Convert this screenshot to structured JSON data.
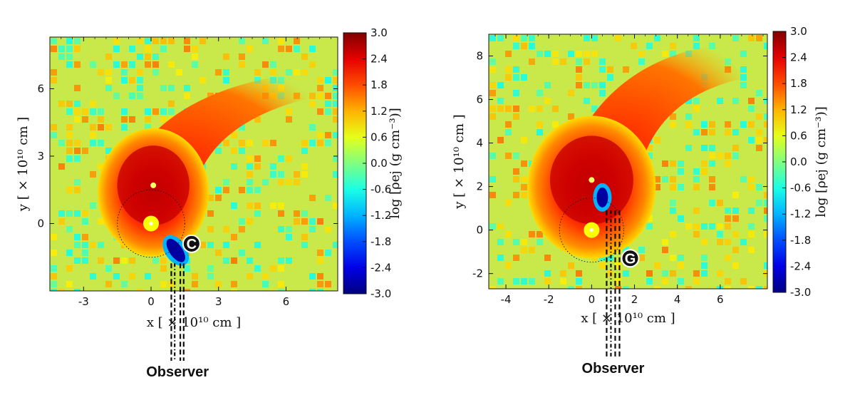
{
  "chart_data": [
    {
      "type": "heatmap",
      "title": "",
      "xlabel": "x [ × 10¹⁰ cm ]",
      "ylabel": "y [ × 10¹⁰ cm ]",
      "xlim": [
        -4.5,
        8.3
      ],
      "ylim": [
        -3.0,
        8.3
      ],
      "xticks": [
        "-3",
        "0",
        "3",
        "6"
      ],
      "xtick_values": [
        -3,
        0,
        3,
        6
      ],
      "yticks": [
        "0",
        "3",
        "6"
      ],
      "ytick_values": [
        0,
        3,
        6
      ],
      "colorbar": {
        "label": "log [ρej (g cm⁻³)]",
        "range": [
          -3.0,
          3.0
        ],
        "ticks": [
          "3.0",
          "2.4",
          "1.8",
          "1.2",
          "0.6",
          "0.0",
          "-0.6",
          "-1.2",
          "-1.8",
          "-2.4",
          "-3.0"
        ]
      },
      "companion_star": {
        "x": 0.0,
        "y": 0.0
      },
      "ejecta_center": {
        "x": 0.1,
        "y": 1.7
      },
      "circle": {
        "x": 0.0,
        "y": 0.0,
        "r": 1.5
      },
      "low_density_blob": {
        "x": 1.1,
        "y": -1.2,
        "value": -2.8
      },
      "marker": {
        "label": "C",
        "x": 1.8,
        "y": -0.9
      },
      "observer_lines_x": [
        0.9,
        1.05,
        1.3,
        1.45
      ],
      "observer_label": "Observer"
    },
    {
      "type": "heatmap",
      "title": "",
      "xlabel": "x [ × 10¹⁰ cm ]",
      "ylabel": "y [ × 10¹⁰ cm ]",
      "xlim": [
        -4.8,
        8.2
      ],
      "ylim": [
        -2.7,
        9.0
      ],
      "xticks": [
        "-4",
        "-2",
        "0",
        "2",
        "4",
        "6"
      ],
      "xtick_values": [
        -4,
        -2,
        0,
        2,
        4,
        6
      ],
      "yticks": [
        "-2",
        "0",
        "2",
        "4",
        "6",
        "8"
      ],
      "ytick_values": [
        -2,
        0,
        2,
        4,
        6,
        8
      ],
      "colorbar": {
        "label": "log [ρej (g cm⁻³)]",
        "range": [
          -3.0,
          3.0
        ],
        "ticks": [
          "3.0",
          "2.4",
          "1.8",
          "1.2",
          "0.6",
          "0.0",
          "-0.6",
          "-1.2",
          "-1.8",
          "-2.4",
          "-3.0"
        ]
      },
      "companion_star": {
        "x": 0.0,
        "y": 0.0
      },
      "ejecta_center": {
        "x": 0.0,
        "y": 2.3
      },
      "circle": {
        "x": 0.0,
        "y": 0.0,
        "r": 1.5
      },
      "low_density_blob": {
        "x": 0.5,
        "y": 1.5,
        "value": -2.8
      },
      "marker": {
        "label": "G",
        "x": 1.8,
        "y": -1.3
      },
      "observer_lines_x": [
        0.7,
        0.9,
        1.1,
        1.3
      ],
      "observer_label": "Observer"
    }
  ]
}
